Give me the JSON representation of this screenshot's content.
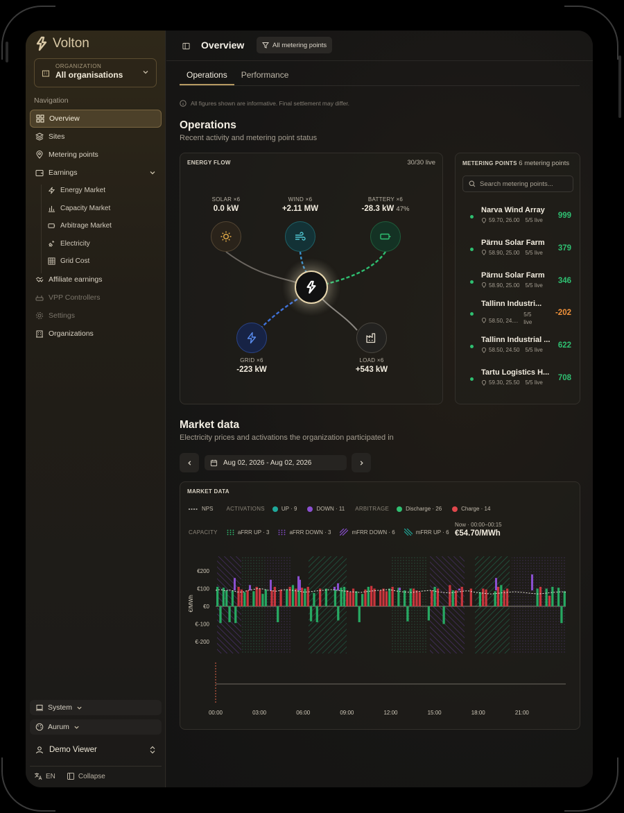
{
  "app": {
    "name": "Volton"
  },
  "org": {
    "label": "ORGANIZATION",
    "value": "All organisations"
  },
  "nav": {
    "title": "Navigation",
    "items": [
      {
        "label": "Overview",
        "icon": "grid-icon"
      },
      {
        "label": "Sites",
        "icon": "layers-icon"
      },
      {
        "label": "Metering points",
        "icon": "pin-icon"
      },
      {
        "label": "Earnings",
        "icon": "wallet-icon"
      },
      {
        "label": "Energy Market",
        "icon": "bolt-icon"
      },
      {
        "label": "Capacity Market",
        "icon": "bar-chart-icon"
      },
      {
        "label": "Arbitrage Market",
        "icon": "battery-icon"
      },
      {
        "label": "Electricity",
        "icon": "plug-icon"
      },
      {
        "label": "Grid Cost",
        "icon": "table-icon"
      },
      {
        "label": "Affiliate earnings",
        "icon": "handshake-icon"
      },
      {
        "label": "VPP Controllers",
        "icon": "router-icon"
      },
      {
        "label": "Settings",
        "icon": "gear-icon"
      },
      {
        "label": "Organizations",
        "icon": "building-icon"
      }
    ]
  },
  "footer": {
    "system": "System",
    "theme": "Aurum",
    "user": "Demo Viewer",
    "lang": "EN",
    "collapse": "Collapse"
  },
  "header": {
    "title": "Overview",
    "filter": "All metering points"
  },
  "tabs": [
    "Operations",
    "Performance"
  ],
  "notice": "All figures shown are informative. Final settlement may differ.",
  "operations": {
    "title": "Operations",
    "subtitle": "Recent activity and metering point status"
  },
  "energy_flow": {
    "label": "ENERGY FLOW",
    "live": "30/30 live",
    "nodes": {
      "solar": {
        "name": "SOLAR ×6",
        "value": "0.0 kW"
      },
      "wind": {
        "name": "WIND ×6",
        "value": "+2.11 MW"
      },
      "battery": {
        "name": "BATTERY ×6",
        "value": "-28.3 kW",
        "soc": "47%"
      },
      "grid": {
        "name": "GRID ×6",
        "value": "-223 kW"
      },
      "load": {
        "name": "LOAD ×6",
        "value": "+543 kW"
      }
    }
  },
  "metering": {
    "label": "METERING POINTS",
    "count": "6 metering points",
    "search_placeholder": "Search metering points...",
    "items": [
      {
        "name": "Narva Wind Array",
        "coords": "59.70, 26.00",
        "live": "5/5 live",
        "value": "999",
        "color": "#2fbf71"
      },
      {
        "name": "Pärnu Solar Farm",
        "coords": "58.90, 25.00",
        "live": "5/5 live",
        "value": "379",
        "color": "#2fbf71"
      },
      {
        "name": "Pärnu Solar Farm",
        "coords": "58.90, 25.00",
        "live": "5/5 live",
        "value": "346",
        "color": "#2fbf71"
      },
      {
        "name": "Tallinn Industri...",
        "coords": "58.50, 24....",
        "live": "5/5 live",
        "value": "-202",
        "color": "#f0913a"
      },
      {
        "name": "Tallinn Industrial ...",
        "coords": "58.50, 24.50",
        "live": "5/5 live",
        "value": "622",
        "color": "#2fbf71"
      },
      {
        "name": "Tartu Logistics H...",
        "coords": "59.30, 25.50",
        "live": "5/5 live",
        "value": "708",
        "color": "#2fbf71"
      }
    ]
  },
  "market": {
    "title": "Market data",
    "subtitle": "Electricity prices and activations the organization participated in",
    "date_range": "Aug 02, 2026 - Aug 02, 2026",
    "card_label": "MARKET DATA",
    "legend": {
      "nps": "NPS",
      "activations": "ACTIVATIONS",
      "up": "UP · 9",
      "down": "DOWN · 11",
      "arbitrage": "ARBITRAGE",
      "discharge": "Discharge · 26",
      "charge": "Charge · 14",
      "capacity": "CAPACITY",
      "afrr_up": "aFRR UP · 3",
      "afrr_down": "aFRR DOWN · 3",
      "mfrr_down": "mFRR DOWN · 6",
      "mfrr_up": "mFRR UP · 6"
    },
    "now_label": "Now · 00:00–00:15",
    "now_value": "€54.70/MWh",
    "colors": {
      "up": "#1fa89a",
      "down": "#8a4fd0",
      "discharge": "#2fbf71",
      "charge": "#e0474c"
    }
  },
  "chart_data": {
    "type": "bar",
    "ylabel": "€/MWh",
    "yticks": [
      "€200",
      "€100",
      "€0",
      "€-100",
      "€-200"
    ],
    "ylim": [
      -200,
      200
    ],
    "xticks": [
      "00:00",
      "03:00",
      "06:00",
      "09:00",
      "12:00",
      "15:00",
      "18:00",
      "21:00"
    ],
    "series": [
      {
        "name": "Discharge",
        "values": [
          110,
          -95,
          105,
          90,
          -90,
          90,
          -95,
          0,
          0,
          80,
          0,
          0,
          85,
          0,
          0,
          70,
          95,
          0,
          0,
          0,
          -90,
          0,
          0,
          95,
          0,
          120,
          0,
          90,
          0,
          100,
          0,
          -85,
          75,
          -90,
          0,
          0,
          100,
          0,
          0,
          95,
          -80,
          105,
          110,
          0,
          0,
          0,
          85,
          -90,
          70,
          0,
          110,
          0,
          0,
          0,
          0,
          0,
          0,
          100,
          0,
          0,
          105,
          0,
          90,
          -85,
          100,
          0,
          0,
          0,
          0,
          0,
          -80,
          0,
          110,
          0,
          0,
          -100,
          0,
          0,
          90,
          0,
          0,
          0,
          0,
          0,
          0,
          0,
          0,
          80,
          0,
          0,
          0,
          0,
          85,
          0,
          120,
          0,
          0,
          0,
          0,
          0,
          0,
          0,
          0,
          0,
          0,
          0,
          100,
          0,
          0,
          100,
          0,
          110,
          0,
          105,
          -95,
          85
        ]
      },
      {
        "name": "Charge",
        "values": [
          0,
          0,
          0,
          0,
          0,
          0,
          0,
          110,
          95,
          0,
          90,
          0,
          0,
          110,
          100,
          0,
          0,
          0,
          90,
          110,
          0,
          95,
          0,
          0,
          110,
          0,
          100,
          0,
          105,
          0,
          110,
          0,
          0,
          0,
          100,
          0,
          0,
          0,
          0,
          0,
          0,
          0,
          0,
          90,
          80,
          100,
          0,
          0,
          0,
          95,
          0,
          115,
          100,
          0,
          90,
          100,
          85,
          0,
          110,
          0,
          0,
          0,
          0,
          0,
          0,
          100,
          90,
          80,
          0,
          0,
          0,
          90,
          0,
          100,
          0,
          0,
          0,
          120,
          0,
          90,
          0,
          110,
          0,
          0,
          100,
          0,
          0,
          0,
          100,
          95,
          0,
          0,
          0,
          110,
          0,
          90,
          100,
          0,
          0,
          0,
          0,
          0,
          0,
          0,
          0,
          0,
          0,
          110,
          0,
          0,
          60,
          0,
          0,
          0,
          0,
          0,
          0,
          0
        ]
      },
      {
        "name": "UP",
        "values": []
      },
      {
        "name": "DOWN",
        "values": []
      }
    ],
    "nps_values": [
      90,
      95,
      88,
      92,
      85,
      80,
      82,
      90,
      95,
      100,
      98,
      92,
      88,
      85,
      90,
      95,
      92,
      88,
      85,
      80,
      82,
      85,
      88,
      90,
      92,
      95,
      90,
      88,
      85,
      82,
      80,
      78,
      82,
      85,
      88,
      90,
      92,
      95,
      90,
      85,
      82,
      80,
      78,
      82,
      85,
      88,
      90,
      85,
      80,
      78,
      75,
      78,
      82,
      85,
      88,
      82,
      78,
      75,
      72,
      70,
      72,
      75,
      78,
      80,
      82,
      80,
      78,
      75,
      72,
      70,
      72,
      75,
      78,
      80,
      82,
      80
    ]
  }
}
